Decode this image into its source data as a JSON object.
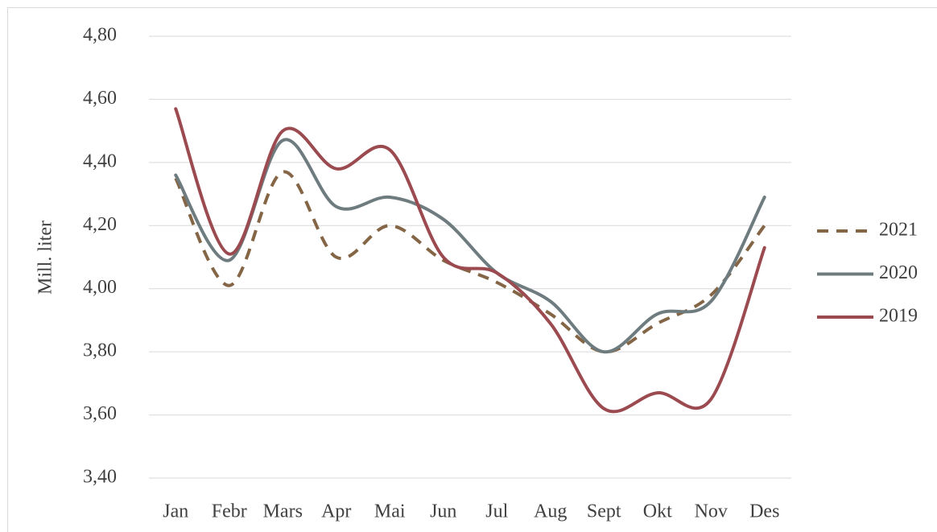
{
  "chart_data": {
    "type": "line",
    "y_label": "Mill. liter",
    "categories": [
      "Jan",
      "Febr",
      "Mars",
      "Apr",
      "Mai",
      "Jun",
      "Jul",
      "Aug",
      "Sept",
      "Okt",
      "Nov",
      "Des"
    ],
    "series": [
      {
        "name": "2021",
        "color": "#846545",
        "dashed": true,
        "values": [
          4.35,
          4.01,
          4.37,
          4.1,
          4.2,
          4.09,
          4.02,
          3.92,
          3.8,
          3.89,
          3.98,
          4.2
        ]
      },
      {
        "name": "2020",
        "color": "#6e7c80",
        "dashed": false,
        "values": [
          4.36,
          4.09,
          4.47,
          4.26,
          4.29,
          4.22,
          4.05,
          3.96,
          3.8,
          3.92,
          3.96,
          4.29
        ]
      },
      {
        "name": "2019",
        "color": "#9b4a50",
        "dashed": false,
        "values": [
          4.57,
          4.11,
          4.5,
          4.38,
          4.44,
          4.1,
          4.05,
          3.89,
          3.62,
          3.67,
          3.65,
          4.13
        ]
      }
    ],
    "ylim": [
      3.4,
      4.8
    ],
    "yticks": [
      {
        "value": 3.4,
        "label": "3,40"
      },
      {
        "value": 3.6,
        "label": "3,60"
      },
      {
        "value": 3.8,
        "label": "3,80"
      },
      {
        "value": 4.0,
        "label": "4,00"
      },
      {
        "value": 4.2,
        "label": "4,20"
      },
      {
        "value": 4.4,
        "label": "4,40"
      },
      {
        "value": 4.6,
        "label": "4,60"
      },
      {
        "value": 4.8,
        "label": "4,80"
      }
    ],
    "grid": true,
    "smooth": true,
    "legend": "right"
  }
}
